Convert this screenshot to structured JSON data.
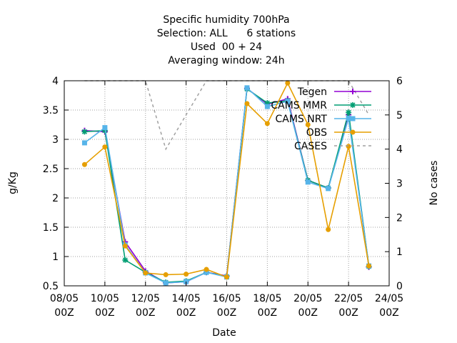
{
  "chart_data": {
    "type": "line",
    "title_lines": [
      "Specific humidity 700hPa",
      "Selection: ALL      6 stations",
      "Used  00 + 24",
      "Averaging window: 24h"
    ],
    "xlabel": "Date",
    "ylabel": "g/Kg",
    "y2label": "No cases",
    "xlim": [
      8,
      24
    ],
    "ylim": [
      0.5,
      4
    ],
    "y2lim": [
      0,
      6
    ],
    "grid": true,
    "legend_position": "top-right",
    "x_ticks": [
      {
        "x": 8,
        "line1": "08/05",
        "line2": "00Z"
      },
      {
        "x": 10,
        "line1": "10/05",
        "line2": "00Z"
      },
      {
        "x": 12,
        "line1": "12/05",
        "line2": "00Z"
      },
      {
        "x": 14,
        "line1": "14/05",
        "line2": "00Z"
      },
      {
        "x": 16,
        "line1": "16/05",
        "line2": "00Z"
      },
      {
        "x": 18,
        "line1": "18/05",
        "line2": "00Z"
      },
      {
        "x": 20,
        "line1": "20/05",
        "line2": "00Z"
      },
      {
        "x": 22,
        "line1": "22/05",
        "line2": "00Z"
      },
      {
        "x": 24,
        "line1": "24/05",
        "line2": "00Z"
      }
    ],
    "y_ticks": [
      {
        "v": 0.5,
        "label": "0.5"
      },
      {
        "v": 1,
        "label": "1"
      },
      {
        "v": 1.5,
        "label": "1.5"
      },
      {
        "v": 2,
        "label": "2"
      },
      {
        "v": 2.5,
        "label": "2.5"
      },
      {
        "v": 3,
        "label": "3"
      },
      {
        "v": 3.5,
        "label": "3.5"
      },
      {
        "v": 4,
        "label": "4"
      }
    ],
    "y2_ticks": [
      {
        "v": 0,
        "label": "0"
      },
      {
        "v": 1,
        "label": "1"
      },
      {
        "v": 2,
        "label": "2"
      },
      {
        "v": 3,
        "label": "3"
      },
      {
        "v": 4,
        "label": "4"
      },
      {
        "v": 5,
        "label": "5"
      },
      {
        "v": 6,
        "label": "6"
      }
    ],
    "x": [
      9,
      10,
      11,
      12,
      13,
      14,
      15,
      16,
      17,
      18,
      19,
      20,
      21,
      22,
      23
    ],
    "series": [
      {
        "name": "Tegen",
        "color": "#9400d3",
        "marker": "plus",
        "axis": "y",
        "values": [
          3.15,
          3.13,
          1.25,
          0.75,
          0.55,
          0.57,
          0.73,
          0.67,
          3.87,
          3.6,
          3.69,
          2.3,
          2.17,
          3.42,
          0.82
        ]
      },
      {
        "name": "CAMS MMR",
        "color": "#009e73",
        "marker": "star",
        "axis": "y",
        "values": [
          3.13,
          3.15,
          0.94,
          0.73,
          0.56,
          0.58,
          0.73,
          0.66,
          3.86,
          3.62,
          3.66,
          2.3,
          2.17,
          3.46,
          0.83
        ]
      },
      {
        "name": "CAMS NRT",
        "color": "#56b4e9",
        "marker": "square",
        "axis": "y",
        "values": [
          2.94,
          3.2,
          1.2,
          0.72,
          0.55,
          0.57,
          0.73,
          0.65,
          3.88,
          3.56,
          3.65,
          2.27,
          2.16,
          3.36,
          0.84
        ]
      },
      {
        "name": "OBS",
        "color": "#e69f00",
        "marker": "circle",
        "axis": "y",
        "values": [
          2.57,
          2.87,
          1.18,
          0.72,
          0.69,
          0.7,
          0.78,
          0.65,
          3.61,
          3.27,
          3.96,
          3.25,
          1.46,
          2.88,
          0.84
        ]
      },
      {
        "name": "CASES",
        "color": "#a0a0a0",
        "marker": "none",
        "dashed": true,
        "axis": "y2",
        "x": [
          9,
          10,
          11,
          12,
          13,
          14,
          15,
          16,
          17,
          18,
          19,
          20,
          21,
          22,
          23
        ],
        "values": [
          6,
          6,
          6,
          6,
          4,
          5,
          6,
          6,
          6,
          6,
          6,
          6,
          6,
          6,
          5
        ]
      }
    ]
  }
}
